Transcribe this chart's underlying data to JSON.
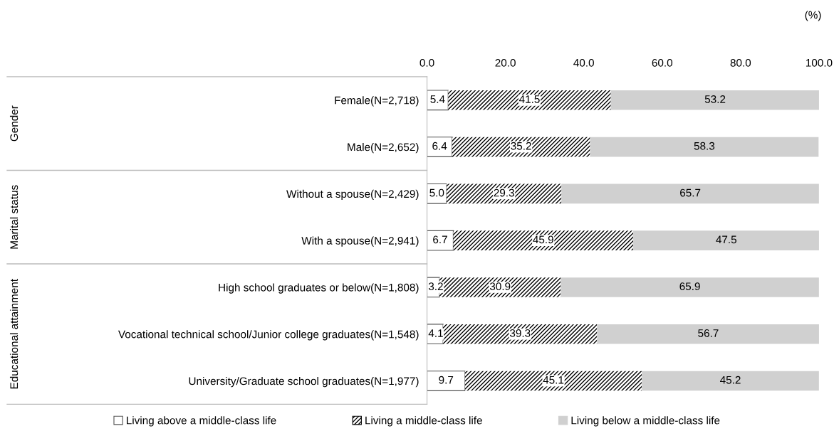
{
  "chart_data": {
    "type": "bar",
    "orientation": "horizontal",
    "stacked": true,
    "xlabel": "(%)",
    "categories": [
      "Female(N=2,718)",
      "Male(N=2,652)",
      "Without a spouse(N=2,429)",
      "With a spouse(N=2,941)",
      "High school graduates or below(N=1,808)",
      "Vocational technical school/Junior college graduates(N=1,548)",
      "University/Graduate school graduates(N=1,977)"
    ],
    "series": [
      {
        "name": "Living above a middle-class life",
        "color": "#ffffff",
        "values": [
          5.4,
          6.4,
          5.0,
          6.7,
          3.2,
          4.1,
          9.7
        ],
        "value_labels": [
          "5.4",
          "6.4",
          "5.0",
          "6.7",
          "3.2",
          "4.1",
          "9.7"
        ]
      },
      {
        "name": "Living a middle-class life",
        "color": "#000000",
        "values": [
          41.5,
          35.2,
          29.3,
          45.9,
          30.9,
          39.3,
          45.1
        ],
        "value_labels": [
          "41.5",
          "35.2",
          "29.3",
          "45.9",
          "30.9",
          "39.3",
          "45.1"
        ]
      },
      {
        "name": "Living below a middle-class life",
        "color": "#d0d0d0",
        "values": [
          53.2,
          58.3,
          65.7,
          47.5,
          65.9,
          56.7,
          45.2
        ],
        "value_labels": [
          "53.2",
          "58.3",
          "65.7",
          "47.5",
          "65.9",
          "56.7",
          "45.2"
        ]
      }
    ],
    "xlim": [
      0,
      100
    ],
    "xticks": [
      {
        "value": 0,
        "label": "0.0"
      },
      {
        "value": 20,
        "label": "20.0"
      },
      {
        "value": 40,
        "label": "40.0"
      },
      {
        "value": 60,
        "label": "60.0"
      },
      {
        "value": 80,
        "label": "80.0"
      },
      {
        "value": 100,
        "label": "100.0"
      }
    ],
    "annotations": [
      "Gender",
      "Marital status",
      "Educational attainment"
    ],
    "grid": false,
    "legend": "bottom"
  }
}
